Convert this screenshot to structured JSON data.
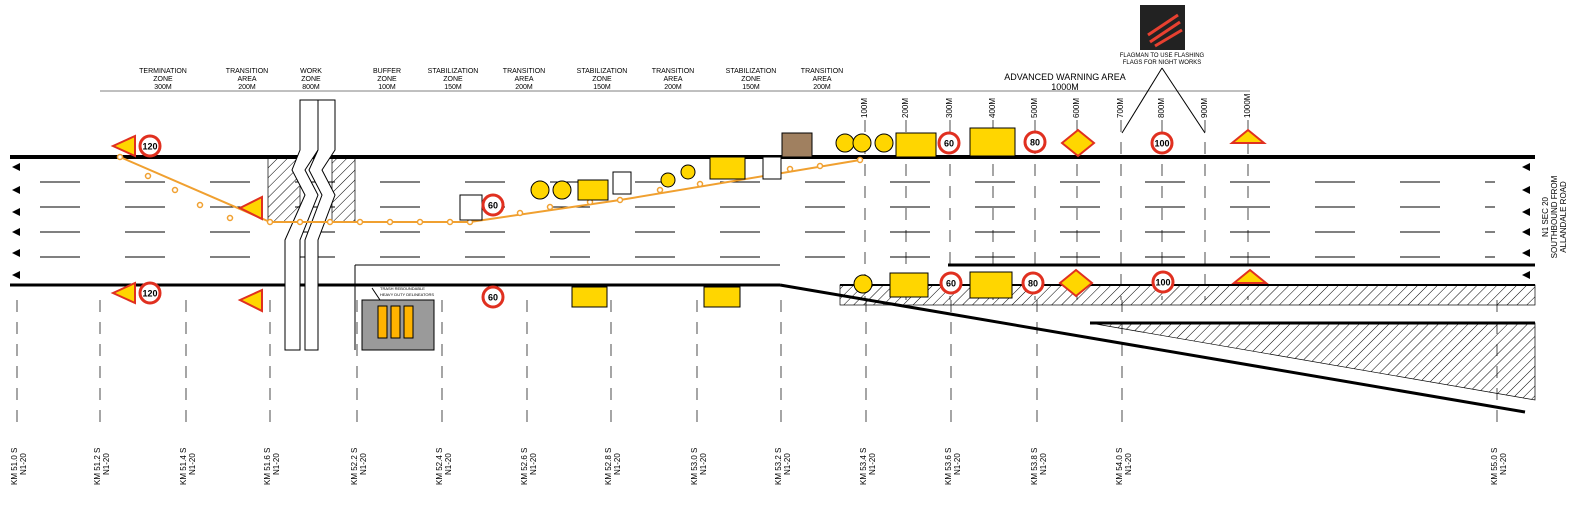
{
  "zones": [
    {
      "name": [
        "TERMINATION",
        "ZONE"
      ],
      "length": "300M"
    },
    {
      "name": [
        "TRANSITION",
        "AREA"
      ],
      "length": "200M"
    },
    {
      "name": [
        "WORK",
        "ZONE"
      ],
      "length": "800M"
    },
    {
      "name": [
        "BUFFER",
        "ZONE"
      ],
      "length": "100M"
    },
    {
      "name": [
        "STABILIZATION",
        "ZONE"
      ],
      "length": "150M"
    },
    {
      "name": [
        "TRANSITION",
        "AREA"
      ],
      "length": "200M"
    },
    {
      "name": [
        "STABILIZATION",
        "ZONE"
      ],
      "length": "150M"
    },
    {
      "name": [
        "TRANSITION",
        "AREA"
      ],
      "length": "200M"
    },
    {
      "name": [
        "STABILIZATION",
        "ZONE"
      ],
      "length": "150M"
    },
    {
      "name": [
        "TRANSITION",
        "AREA"
      ],
      "length": "200M"
    }
  ],
  "warning_area": {
    "title": "ADVANCED WARNING AREA",
    "length": "1000M",
    "distances": [
      "100M",
      "200M",
      "300M",
      "400M",
      "500M",
      "600M",
      "700M",
      "800M",
      "900M",
      "1000M"
    ]
  },
  "flagman_note": [
    "FLAGMAN TO USE FLASHING",
    "FLAGS FOR NIGHT WORKS"
  ],
  "delineator_note": [
    "TRASH REBOUNDABLE",
    "HEAVY DUTY DELINEATORS"
  ],
  "road_label": [
    "N1 SEC 20",
    "SOUTHBOUND FROM",
    "ALLANDALE ROAD"
  ],
  "km_markers": [
    {
      "km": "KM 51.0 S",
      "route": "N1-20"
    },
    {
      "km": "KM 51.2 S",
      "route": "N1-20"
    },
    {
      "km": "KM 51.4 S",
      "route": "N1-20"
    },
    {
      "km": "KM 51.6 S",
      "route": "N1-20"
    },
    {
      "km": "KM 52.2 S",
      "route": "N1-20"
    },
    {
      "km": "KM 52.4 S",
      "route": "N1-20"
    },
    {
      "km": "KM 52.6 S",
      "route": "N1-20"
    },
    {
      "km": "KM 52.8 S",
      "route": "N1-20"
    },
    {
      "km": "KM 53.0 S",
      "route": "N1-20"
    },
    {
      "km": "KM 53.2 S",
      "route": "N1-20"
    },
    {
      "km": "KM 53.4 S",
      "route": "N1-20"
    },
    {
      "km": "KM 53.6 S",
      "route": "N1-20"
    },
    {
      "km": "KM 53.8 S",
      "route": "N1-20"
    },
    {
      "km": "KM 54.0 S",
      "route": "N1-20"
    },
    {
      "km": "KM 55.0 S",
      "route": "N1-20"
    }
  ],
  "speed_signs": [
    "120",
    "120",
    "60",
    "60",
    "60",
    "60",
    "80",
    "80",
    "100",
    "100"
  ]
}
